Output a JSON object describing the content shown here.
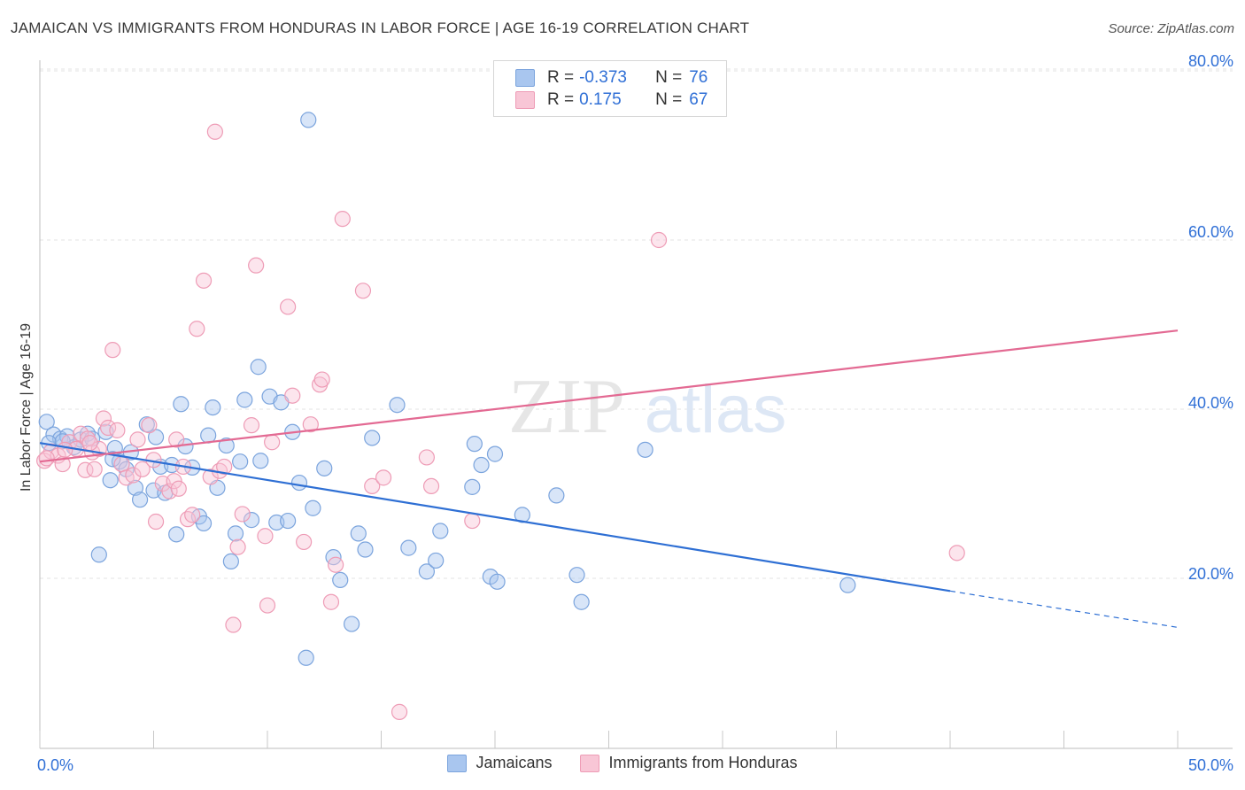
{
  "header": {
    "title": "JAMAICAN VS IMMIGRANTS FROM HONDURAS IN LABOR FORCE | AGE 16-19 CORRELATION CHART",
    "source": "Source: ZipAtlas.com"
  },
  "watermark": {
    "zip": "ZIP",
    "atlas": "atlas"
  },
  "legend": {
    "rows": [
      {
        "r_label": "R =",
        "r_value": "-0.373",
        "n_label": "N =",
        "n_value": "76",
        "color": "#a9c6ef"
      },
      {
        "r_label": "R =",
        "r_value": "0.175",
        "n_label": "N =",
        "n_value": "67",
        "color": "#f4b6c9"
      }
    ]
  },
  "bottom_legend": {
    "items": [
      {
        "label": "Jamaicans",
        "color": "#a9c6ef"
      },
      {
        "label": "Immigrants from Honduras",
        "color": "#f4b6c9"
      }
    ]
  },
  "chart_data": {
    "type": "scatter",
    "title": "JAMAICAN VS IMMIGRANTS FROM HONDURAS IN LABOR FORCE | AGE 16-19 CORRELATION CHART",
    "xlabel": "",
    "ylabel": "In Labor Force | Age 16-19",
    "xlim": [
      0,
      50
    ],
    "ylim": [
      0,
      85
    ],
    "x_tick_labels": [
      {
        "value": 0,
        "label": "0.0%"
      },
      {
        "value": 50,
        "label": "50.0%"
      }
    ],
    "y_tick_labels": [
      {
        "value": 20,
        "label": "20.0%"
      },
      {
        "value": 40,
        "label": "40.0%"
      },
      {
        "value": 60,
        "label": "60.0%"
      },
      {
        "value": 80,
        "label": "80.0%"
      }
    ],
    "grid": true,
    "colors": {
      "jamaicans_fill": "#a9c6ef",
      "jamaicans_stroke": "#7ba4dd",
      "jamaicans_line": "#2e6fd4",
      "honduras_fill": "#f8c6d6",
      "honduras_stroke": "#ee9cb6",
      "honduras_line": "#e36a93",
      "axis_label": "#2f6fd6"
    },
    "series": [
      {
        "name": "Jamaicans",
        "trend": {
          "x0": 0,
          "y0": 36,
          "x1": 40,
          "y1": 18.5,
          "dash_x1": 50,
          "dash_y1": 14.2
        },
        "points": [
          [
            0.3,
            38.5
          ],
          [
            0.6,
            37.0
          ],
          [
            0.9,
            36.5
          ],
          [
            1.2,
            36.8
          ],
          [
            1.5,
            35.5
          ],
          [
            1.8,
            36.4
          ],
          [
            2.1,
            37.1
          ],
          [
            2.3,
            36.5
          ],
          [
            2.6,
            22.8
          ],
          [
            2.9,
            37.3
          ],
          [
            3.1,
            31.6
          ],
          [
            3.3,
            35.4
          ],
          [
            3.5,
            33.8
          ],
          [
            3.8,
            32.9
          ],
          [
            4.0,
            34.9
          ],
          [
            4.2,
            30.7
          ],
          [
            4.4,
            29.3
          ],
          [
            4.7,
            38.2
          ],
          [
            5.0,
            30.4
          ],
          [
            5.1,
            36.7
          ],
          [
            5.3,
            33.2
          ],
          [
            5.5,
            30.1
          ],
          [
            5.8,
            33.4
          ],
          [
            6.0,
            25.2
          ],
          [
            6.2,
            40.6
          ],
          [
            6.4,
            35.6
          ],
          [
            6.7,
            33.1
          ],
          [
            7.0,
            27.3
          ],
          [
            7.2,
            26.5
          ],
          [
            7.4,
            36.9
          ],
          [
            7.6,
            40.2
          ],
          [
            7.8,
            30.7
          ],
          [
            8.2,
            35.7
          ],
          [
            8.4,
            22.0
          ],
          [
            8.6,
            25.3
          ],
          [
            8.8,
            33.8
          ],
          [
            9.0,
            41.1
          ],
          [
            9.3,
            26.9
          ],
          [
            9.6,
            45.0
          ],
          [
            9.7,
            33.9
          ],
          [
            10.1,
            41.5
          ],
          [
            10.4,
            26.6
          ],
          [
            10.6,
            40.8
          ],
          [
            10.9,
            26.8
          ],
          [
            11.1,
            37.3
          ],
          [
            11.4,
            31.3
          ],
          [
            11.7,
            10.6
          ],
          [
            11.8,
            74.2
          ],
          [
            12.0,
            28.3
          ],
          [
            12.5,
            33.0
          ],
          [
            12.9,
            22.5
          ],
          [
            13.2,
            19.8
          ],
          [
            13.7,
            14.6
          ],
          [
            14.0,
            25.3
          ],
          [
            14.3,
            23.4
          ],
          [
            14.6,
            36.6
          ],
          [
            15.7,
            40.5
          ],
          [
            16.2,
            23.6
          ],
          [
            17.0,
            20.8
          ],
          [
            17.4,
            22.1
          ],
          [
            17.6,
            25.6
          ],
          [
            19.0,
            30.8
          ],
          [
            19.1,
            35.9
          ],
          [
            19.4,
            33.4
          ],
          [
            19.8,
            20.2
          ],
          [
            20.1,
            19.6
          ],
          [
            20.0,
            34.7
          ],
          [
            21.2,
            27.5
          ],
          [
            22.7,
            29.8
          ],
          [
            23.6,
            20.4
          ],
          [
            23.8,
            17.2
          ],
          [
            26.6,
            35.2
          ],
          [
            35.5,
            19.2
          ],
          [
            0.4,
            36.0
          ],
          [
            1.0,
            36.2
          ],
          [
            3.2,
            34.1
          ]
        ]
      },
      {
        "name": "Immigrants from Honduras",
        "trend": {
          "x0": 0,
          "y0": 33.8,
          "x1": 50,
          "y1": 49.3
        },
        "points": [
          [
            0.2,
            33.9
          ],
          [
            0.5,
            35.0
          ],
          [
            0.8,
            34.5
          ],
          [
            1.0,
            33.5
          ],
          [
            1.3,
            36.1
          ],
          [
            1.6,
            35.3
          ],
          [
            1.8,
            37.1
          ],
          [
            2.0,
            32.8
          ],
          [
            2.1,
            36.5
          ],
          [
            2.3,
            34.9
          ],
          [
            2.4,
            32.9
          ],
          [
            2.6,
            35.3
          ],
          [
            2.8,
            38.9
          ],
          [
            3.0,
            37.8
          ],
          [
            3.2,
            47.0
          ],
          [
            3.4,
            37.5
          ],
          [
            3.6,
            33.5
          ],
          [
            3.8,
            31.9
          ],
          [
            4.1,
            32.2
          ],
          [
            4.3,
            36.4
          ],
          [
            4.5,
            32.9
          ],
          [
            4.8,
            38.1
          ],
          [
            5.0,
            34.0
          ],
          [
            5.1,
            26.7
          ],
          [
            5.4,
            31.2
          ],
          [
            5.7,
            30.3
          ],
          [
            5.9,
            31.5
          ],
          [
            6.1,
            30.6
          ],
          [
            6.3,
            33.2
          ],
          [
            6.5,
            27.0
          ],
          [
            6.7,
            27.5
          ],
          [
            6.9,
            49.5
          ],
          [
            7.2,
            55.2
          ],
          [
            7.5,
            32.0
          ],
          [
            7.7,
            72.8
          ],
          [
            7.9,
            32.7
          ],
          [
            8.1,
            33.2
          ],
          [
            8.5,
            14.5
          ],
          [
            8.7,
            23.7
          ],
          [
            8.9,
            27.6
          ],
          [
            9.3,
            38.1
          ],
          [
            9.5,
            57.0
          ],
          [
            9.9,
            25.0
          ],
          [
            10.0,
            16.8
          ],
          [
            10.2,
            36.1
          ],
          [
            10.9,
            52.1
          ],
          [
            11.1,
            41.6
          ],
          [
            11.6,
            24.3
          ],
          [
            11.9,
            38.2
          ],
          [
            12.3,
            42.9
          ],
          [
            12.4,
            43.5
          ],
          [
            12.8,
            17.2
          ],
          [
            13.0,
            21.6
          ],
          [
            13.3,
            62.5
          ],
          [
            14.2,
            54.0
          ],
          [
            14.6,
            30.9
          ],
          [
            15.1,
            31.9
          ],
          [
            15.8,
            4.2
          ],
          [
            17.0,
            34.3
          ],
          [
            17.2,
            30.9
          ],
          [
            19.0,
            26.8
          ],
          [
            27.2,
            60.0
          ],
          [
            40.3,
            23.0
          ],
          [
            0.3,
            34.2
          ],
          [
            1.1,
            35.2
          ],
          [
            2.2,
            36.0
          ],
          [
            6.0,
            36.4
          ]
        ]
      }
    ]
  }
}
